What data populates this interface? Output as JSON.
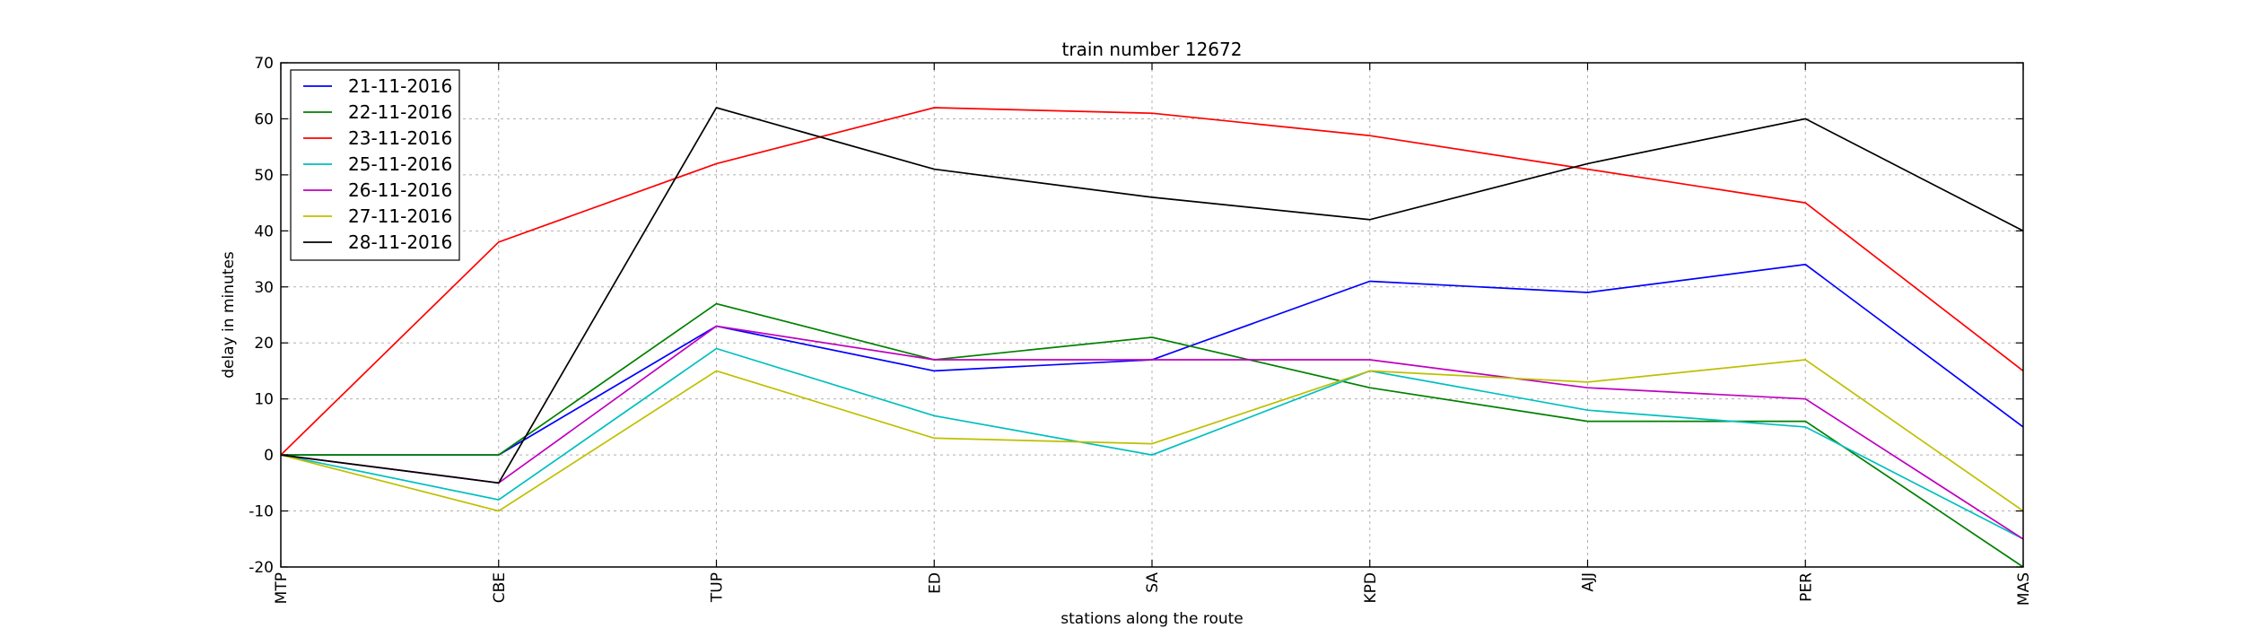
{
  "chart_data": {
    "type": "line",
    "title": "train number 12672",
    "xlabel": "stations along the route",
    "ylabel": "delay in minutes",
    "categories": [
      "MTP",
      "CBE",
      "TUP",
      "ED",
      "SA",
      "KPD",
      "AJJ",
      "PER",
      "MAS"
    ],
    "ylim": [
      -20,
      70
    ],
    "yticks": [
      -20,
      -10,
      0,
      10,
      20,
      30,
      40,
      50,
      60,
      70
    ],
    "grid": true,
    "legend_position": "top-left",
    "series": [
      {
        "name": "21-11-2016",
        "color": "#0000ff",
        "values": [
          0,
          0,
          23,
          15,
          17,
          31,
          29,
          34,
          5
        ]
      },
      {
        "name": "22-11-2016",
        "color": "#008000",
        "values": [
          0,
          0,
          27,
          17,
          21,
          12,
          6,
          6,
          -20
        ]
      },
      {
        "name": "23-11-2016",
        "color": "#ff0000",
        "values": [
          0,
          38,
          52,
          62,
          61,
          57,
          51,
          45,
          15
        ]
      },
      {
        "name": "25-11-2016",
        "color": "#00bfbf",
        "values": [
          0,
          -8,
          19,
          7,
          0,
          15,
          8,
          5,
          -15
        ]
      },
      {
        "name": "26-11-2016",
        "color": "#bf00bf",
        "values": [
          0,
          -5,
          23,
          17,
          17,
          17,
          12,
          10,
          -15
        ]
      },
      {
        "name": "27-11-2016",
        "color": "#bfbf00",
        "values": [
          0,
          -10,
          15,
          3,
          2,
          15,
          13,
          17,
          -10
        ]
      },
      {
        "name": "28-11-2016",
        "color": "#000000",
        "values": [
          0,
          -5,
          62,
          51,
          46,
          42,
          52,
          60,
          40
        ]
      }
    ]
  }
}
